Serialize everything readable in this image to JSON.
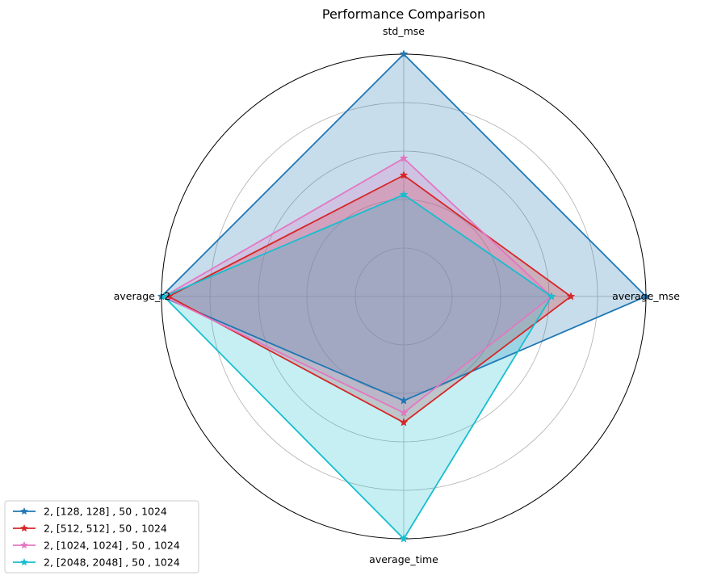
{
  "chart_data": {
    "type": "radar",
    "title": "Performance Comparison",
    "axes": [
      "average_mse",
      "std_mse",
      "average_r2",
      "average_time"
    ],
    "axis_labels_shown": [
      "average_mse",
      "std_mse",
      "average_r2",
      "average_time"
    ],
    "rlim": [
      0,
      1
    ],
    "gridlines": [
      0.2,
      0.4,
      0.6,
      0.8,
      1.0
    ],
    "grid": true,
    "legend_location": "bottom-left",
    "marker": "star",
    "series": [
      {
        "name": "2, [128, 128] , 50 , 1024",
        "color": "#1f77b4",
        "fill_opacity": 0.25,
        "values": [
          1.0,
          1.0,
          1.0,
          0.43
        ]
      },
      {
        "name": "2, [512, 512] , 50 , 1024",
        "color": "#d62728",
        "fill_opacity": 0.25,
        "values": [
          0.69,
          0.5,
          0.97,
          0.52
        ]
      },
      {
        "name": "2, [1024, 1024] , 50 , 1024",
        "color": "#e377c2",
        "fill_opacity": 0.25,
        "values": [
          0.61,
          0.57,
          0.99,
          0.48
        ]
      },
      {
        "name": "2, [2048, 2048] , 50 , 1024",
        "color": "#17becf",
        "fill_opacity": 0.25,
        "values": [
          0.61,
          0.42,
          0.99,
          1.0
        ]
      }
    ]
  }
}
